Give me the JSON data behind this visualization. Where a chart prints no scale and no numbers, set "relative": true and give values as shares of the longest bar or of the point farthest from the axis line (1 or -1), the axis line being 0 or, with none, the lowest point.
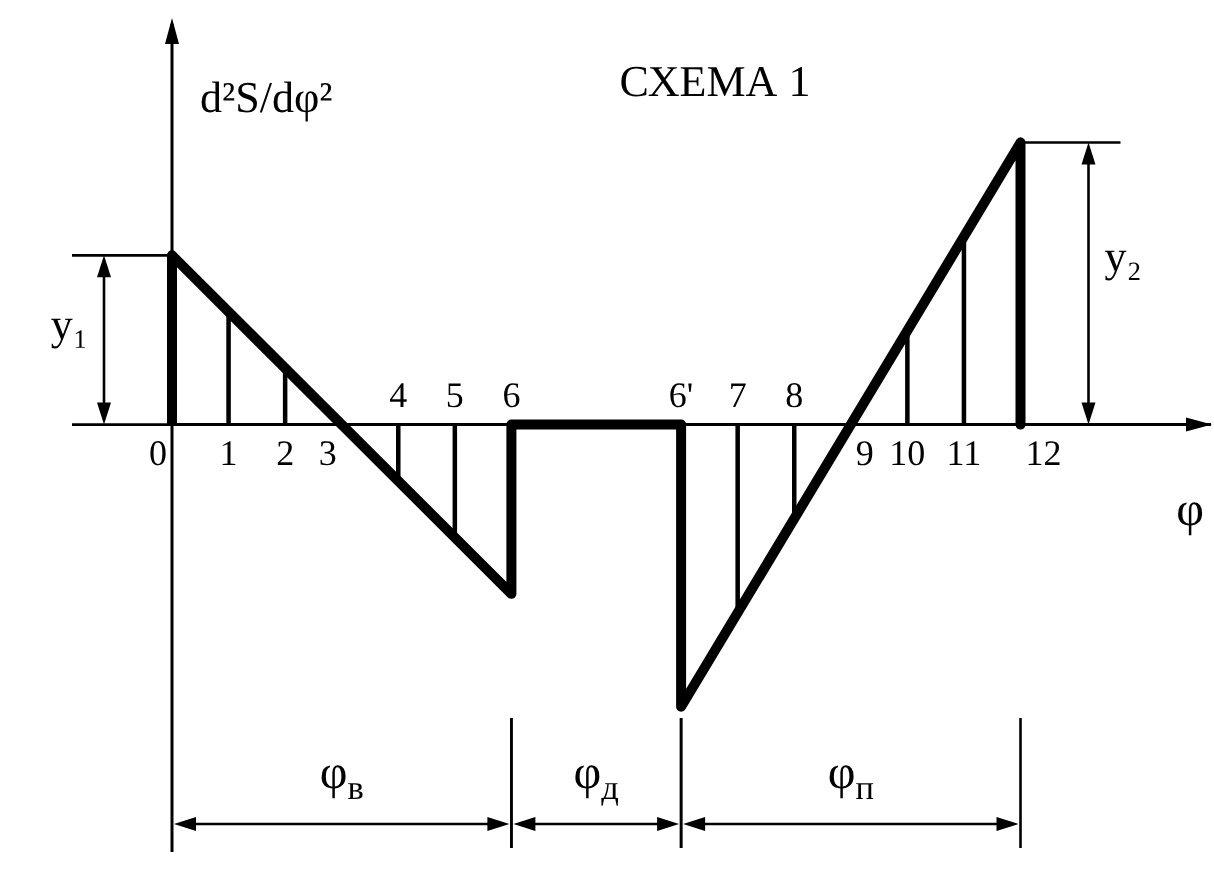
{
  "chart_data": {
    "type": "line",
    "title": "СХЕМА 1",
    "xlabel": "φ",
    "ylabel": "d²S/dφ²",
    "relative": true,
    "categories": [
      "0",
      "1",
      "2",
      "3",
      "4",
      "5",
      "6",
      null,
      null,
      "6'",
      "7",
      "8",
      "9",
      "10",
      "11",
      "12"
    ],
    "series": [
      {
        "color": "#000000",
        "x": [
          "0",
          "0",
          "6",
          "6",
          "6'",
          "6'",
          "12",
          "12"
        ],
        "values": [
          0,
          0.6,
          -0.6,
          0,
          0,
          -1,
          1,
          0
        ]
      },
      {
        "type": "bar",
        "color": "#000000",
        "x": [
          "1",
          "2",
          "4",
          "5",
          "7",
          "8",
          "10",
          "11"
        ],
        "values": [
          0.4,
          0.2,
          -0.2,
          -0.4,
          -0.67,
          -0.33,
          0.33,
          0.67
        ]
      }
    ],
    "ref_lines": [
      {
        "axis": "x",
        "value": "0",
        "color": "#000000"
      }
    ],
    "annotations": [
      {
        "text": "y₁",
        "x": "0",
        "y": 0.6
      },
      {
        "text": "y₂",
        "x": "12",
        "y": 1
      },
      "φ$_{в}$",
      "φ$_{д}$",
      "φ$_{п}$"
    ],
    "marker": "none",
    "line_style": "solid"
  }
}
